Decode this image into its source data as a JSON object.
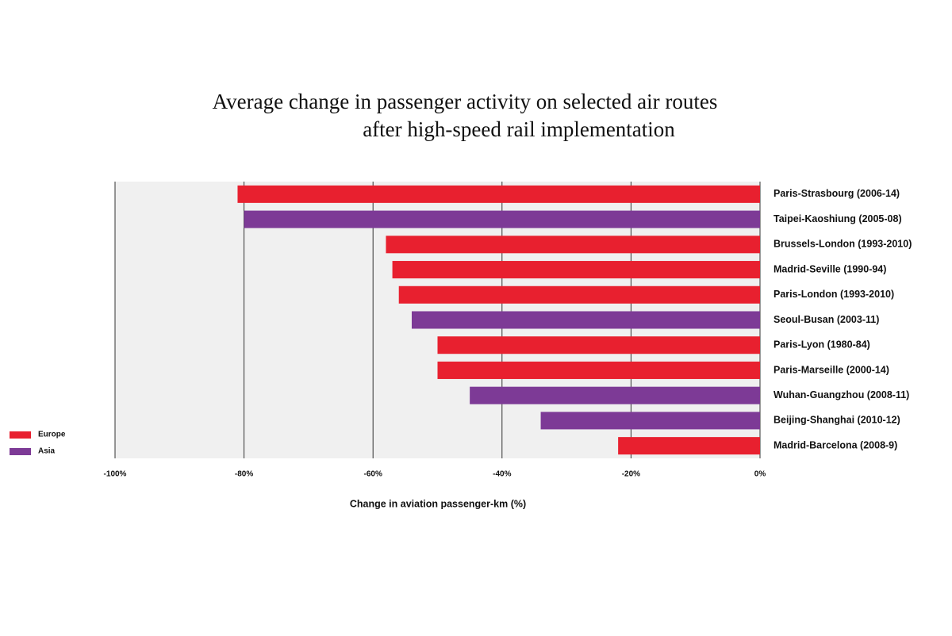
{
  "chart_data": {
    "type": "bar",
    "orientation": "horizontal",
    "title": [
      "Average change in passenger activity on selected air routes",
      "after high-speed rail implementation"
    ],
    "x_label": "Change in aviation passenger-km (%)",
    "categories": [
      "Paris-Strasbourg (2006-14)",
      "Taipei-Kaoshiung (2005-08)",
      "Brussels-London (1993-2010)",
      "Madrid-Seville (1990-94)",
      "Paris-London (1993-2010)",
      "Seoul-Busan (2003-11)",
      "Paris-Lyon (1980-84)",
      "Paris-Marseille (2000-14)",
      "Wuhan-Guangzhou (2008-11)",
      "Beijing-Shanghai (2010-12)",
      "Madrid-Barcelona (2008-9)"
    ],
    "series": [
      {
        "name": "Europe",
        "color": "#e8202f",
        "values": [
          -81,
          null,
          -58,
          -57,
          -56,
          null,
          -50,
          -50,
          null,
          null,
          -22
        ]
      },
      {
        "name": "Asia",
        "color": "#7d3a96",
        "values": [
          null,
          -80,
          null,
          null,
          null,
          -54,
          null,
          null,
          -45,
          -34,
          null
        ]
      }
    ],
    "xlim": [
      -100,
      0
    ],
    "xticks": [
      {
        "value": -100,
        "label": "-100%"
      },
      {
        "value": -80,
        "label": "-80%"
      },
      {
        "value": -60,
        "label": "-60%"
      },
      {
        "value": -40,
        "label": "-40%"
      },
      {
        "value": -20,
        "label": "-20%"
      },
      {
        "value": 0,
        "label": "0%"
      }
    ],
    "grid": true
  }
}
